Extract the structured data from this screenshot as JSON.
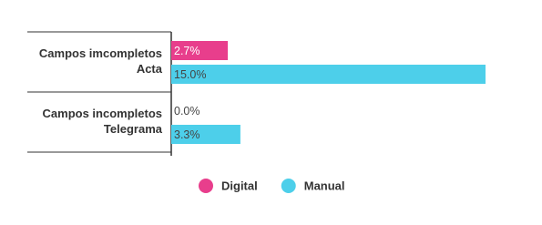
{
  "chart_data": {
    "type": "hbar",
    "categories": [
      [
        "Campos imcompletos",
        "Acta"
      ],
      [
        "Campos incompletos",
        "Telegrama"
      ]
    ],
    "series": [
      {
        "name": "Digital",
        "color": "#e83e8c",
        "values": [
          2.7,
          0.0
        ],
        "value_labels": [
          "2.7%",
          "0.0%"
        ]
      },
      {
        "name": "Manual",
        "color": "#4dcfea",
        "values": [
          15.0,
          3.3
        ],
        "value_labels": [
          "15.0%",
          "3.3%"
        ]
      }
    ]
  }
}
